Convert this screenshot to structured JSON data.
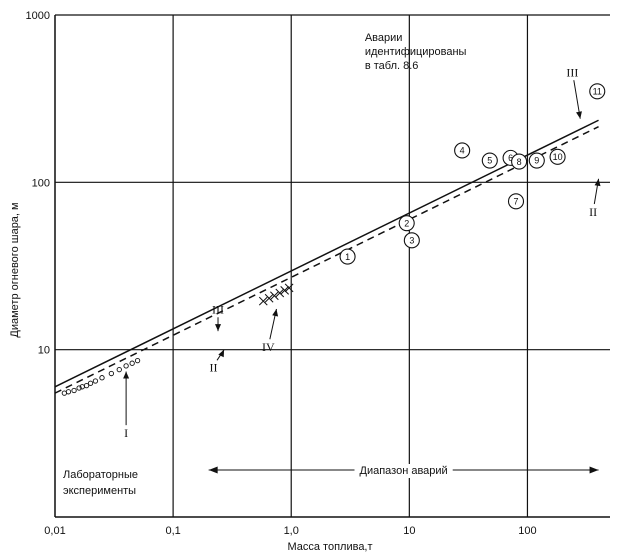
{
  "chart_data": {
    "type": "line",
    "scale": {
      "x": "log",
      "y": "log"
    },
    "xlim": [
      0.01,
      500
    ],
    "ylim": [
      1,
      1000
    ],
    "grid": true,
    "xlabel": "Масса топлива,т",
    "ylabel": "Диаметр огневого шара, м",
    "x_ticks": [
      {
        "value": 0.01,
        "label": "0,01"
      },
      {
        "value": 0.1,
        "label": "0,1"
      },
      {
        "value": 1,
        "label": "1,0"
      },
      {
        "value": 10,
        "label": "10"
      },
      {
        "value": 100,
        "label": "100"
      }
    ],
    "y_ticks": [
      {
        "value": 10,
        "label": "10"
      },
      {
        "value": 100,
        "label": "100"
      },
      {
        "value": 1000,
        "label": "1000"
      }
    ],
    "annotations": {
      "accidents_note": [
        "Аварии",
        "идентифицированы",
        "в табл. 8.6"
      ],
      "lab_note": [
        "Лабораторные",
        "эксперименты"
      ],
      "range_label": "Диапазон аварий",
      "range_x": [
        0.2,
        400
      ]
    },
    "series": [
      {
        "label": "III",
        "style": "solid",
        "x": [
          0.01,
          400
        ],
        "y": [
          6.0,
          235
        ]
      },
      {
        "label": "II",
        "style": "dashed",
        "x": [
          0.01,
          400
        ],
        "y": [
          5.5,
          215
        ]
      },
      {
        "label": "I",
        "style": "circles",
        "x": [
          0.012,
          0.013,
          0.0145,
          0.016,
          0.017,
          0.0185,
          0.02,
          0.022,
          0.025,
          0.03,
          0.035,
          0.04,
          0.045,
          0.05
        ],
        "y": [
          5.5,
          5.6,
          5.7,
          5.9,
          6.0,
          6.1,
          6.3,
          6.5,
          6.8,
          7.2,
          7.6,
          8.0,
          8.3,
          8.6
        ]
      },
      {
        "label": "IV",
        "style": "crosses",
        "x": [
          0.58,
          0.65,
          0.72,
          0.8,
          0.88,
          0.96
        ],
        "y": [
          19.5,
          20.3,
          21.0,
          21.8,
          22.6,
          23.4
        ]
      }
    ],
    "labelled_points": [
      {
        "label": "1",
        "x": 3.0,
        "y": 36
      },
      {
        "label": "2",
        "x": 9.5,
        "y": 57
      },
      {
        "label": "3",
        "x": 10.5,
        "y": 45
      },
      {
        "label": "4",
        "x": 28,
        "y": 155
      },
      {
        "label": "5",
        "x": 48,
        "y": 135
      },
      {
        "label": "6",
        "x": 72,
        "y": 140
      },
      {
        "label": "7",
        "x": 80,
        "y": 77
      },
      {
        "label": "8",
        "x": 85,
        "y": 133
      },
      {
        "label": "9",
        "x": 120,
        "y": 135
      },
      {
        "label": "10",
        "x": 180,
        "y": 142
      },
      {
        "label": "11",
        "x": 390,
        "y": 350
      }
    ],
    "line_labels": [
      {
        "text": "III",
        "x": 0.24,
        "y": 16.5,
        "arrow_to": [
          0.24,
          12.9
        ]
      },
      {
        "text": "II",
        "x": 0.22,
        "y": 7.4,
        "arrow_to": [
          0.27,
          10.0
        ]
      },
      {
        "text": "I",
        "x": 0.04,
        "y": 3.0,
        "arrow_to": [
          0.04,
          7.4
        ]
      },
      {
        "text": "IV",
        "x": 0.64,
        "y": 9.8,
        "arrow_to": [
          0.75,
          17.5
        ]
      },
      {
        "text": "III",
        "x": 240,
        "y": 430,
        "arrow_to": [
          280,
          240
        ]
      },
      {
        "text": "II",
        "x": 360,
        "y": 63,
        "arrow_to": [
          400,
          105
        ]
      }
    ]
  }
}
